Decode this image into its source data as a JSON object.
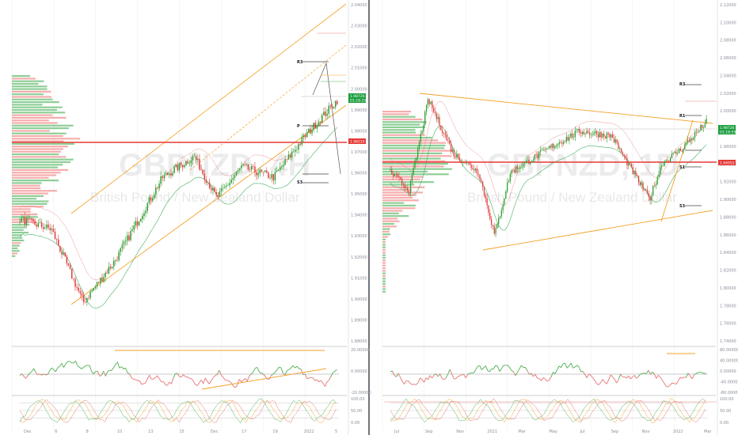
{
  "colors": {
    "up": "#2e9d2e",
    "down": "#e23b3b",
    "accent_orange": "#f4a024",
    "price_red": "#e53935",
    "price_green": "#26a69a",
    "grid": "#e8e8e8",
    "axis_text": "#8a8f99"
  },
  "left_panel": {
    "watermark_symbol": "GBPNZD, 4H",
    "watermark_name": "British Pound / New Zealand Dollar",
    "price_tag_red": "1.96510",
    "price_tag_green": "1.98726",
    "price_tag_time": "01:18:25",
    "pivot_labels": [
      "R3",
      "P",
      "S3"
    ],
    "bottom_axis": [
      "Dec",
      "6",
      "8",
      "10",
      "13",
      "15",
      "Dec",
      "17",
      "19",
      "2022",
      "5"
    ]
  },
  "right_panel": {
    "watermark_symbol": "GBPNZD, 1D",
    "watermark_name": "British Pound / New Zealand Dollar",
    "price_tag_red": "1.94952",
    "price_tag_green": "1.98726",
    "price_tag_time": "01:18:55",
    "pivot_labels": [
      "R3",
      "R1",
      "S1",
      "S3"
    ],
    "bottom_axis": [
      "Jul",
      "Sep",
      "Nov",
      "2021",
      "Mar",
      "May",
      "Jul",
      "Sep",
      "Nov",
      "2022",
      "Mar"
    ]
  },
  "chart_data": [
    {
      "type": "candlestick",
      "title": "GBPNZD, 4H",
      "ylim": [
        1.875,
        2.04
      ],
      "y_ticks": [
        "2.04000",
        "2.03000",
        "2.02000",
        "2.01000",
        "2.00000",
        "1.99000",
        "1.98000",
        "1.97000",
        "1.96000",
        "1.95000",
        "1.94000",
        "1.93000",
        "1.92000",
        "1.91000",
        "1.90000",
        "1.89000",
        "1.88000"
      ],
      "indicator_1": {
        "name": "oscillator",
        "ticks": [
          "20.00000",
          "0.00000",
          "-20.00000"
        ]
      },
      "indicator_2": {
        "name": "stochastic",
        "ticks": [
          "100.00",
          "50.00",
          "0.00"
        ]
      }
    },
    {
      "type": "candlestick",
      "title": "GBPNZD, 1D",
      "ylim": [
        1.74,
        2.12
      ],
      "y_ticks": [
        "2.12000",
        "2.10000",
        "2.08000",
        "2.06000",
        "2.04000",
        "2.02000",
        "2.00000",
        "1.98000",
        "1.96000",
        "1.94000",
        "1.92000",
        "1.90000",
        "1.88000",
        "1.86000",
        "1.84000",
        "1.82000",
        "1.80000",
        "1.78000",
        "1.76000",
        "1.74000"
      ],
      "indicator_1": {
        "name": "oscillator",
        "ticks": [
          "80.00000",
          "40.00000",
          "0.00000",
          "-40.00000",
          "-80.00000"
        ]
      },
      "indicator_2": {
        "name": "stochastic",
        "ticks": [
          "100.00",
          "50.00",
          "0.00"
        ]
      }
    }
  ]
}
